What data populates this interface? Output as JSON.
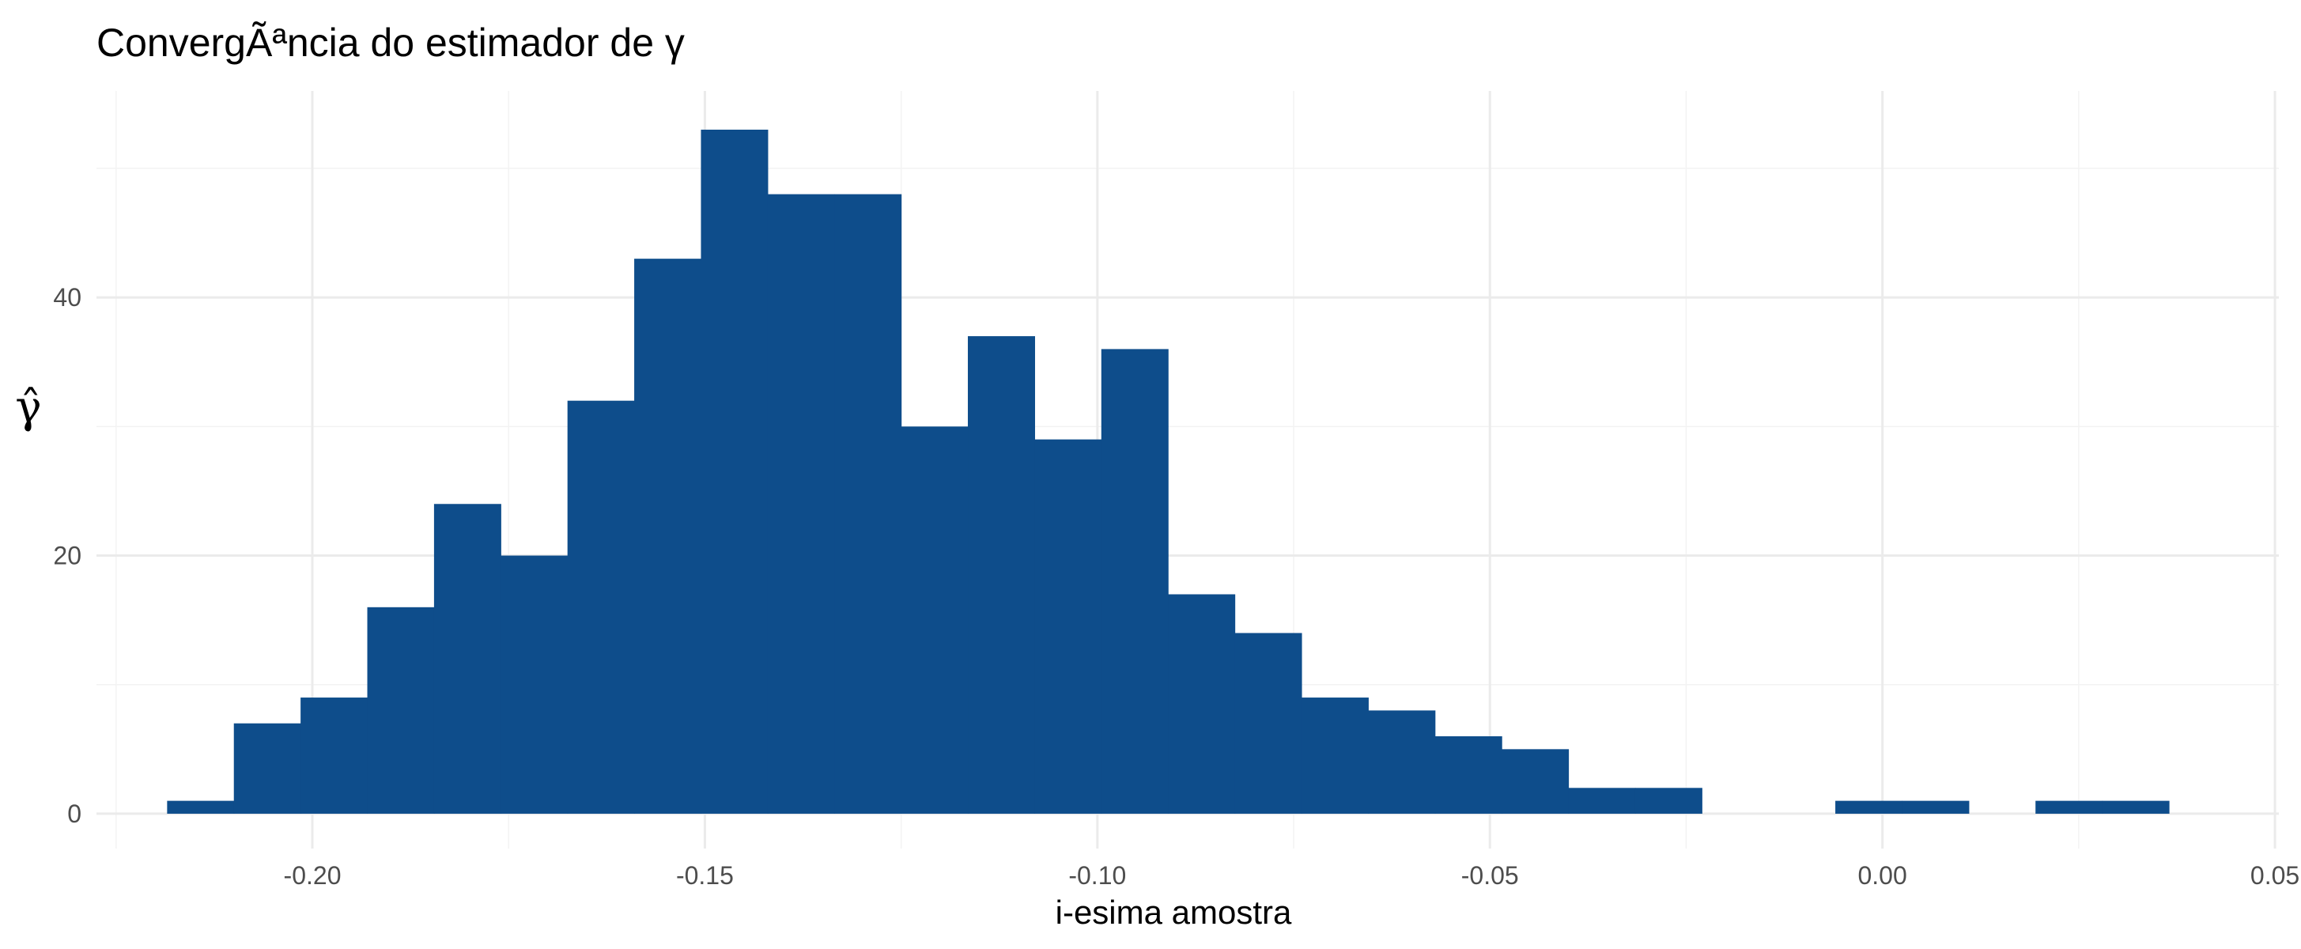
{
  "chart_data": {
    "type": "bar",
    "title": "ConvergÃªncia do estimador de γ",
    "xlabel": "i-esima amostra",
    "ylabel": "γ̂",
    "bin_width": 0.0085,
    "bins": [
      {
        "x0": -0.2185,
        "x1": -0.21,
        "count": 1
      },
      {
        "x0": -0.21,
        "x1": -0.2015,
        "count": 7
      },
      {
        "x0": -0.2015,
        "x1": -0.193,
        "count": 9
      },
      {
        "x0": -0.193,
        "x1": -0.1845,
        "count": 16
      },
      {
        "x0": -0.1845,
        "x1": -0.176,
        "count": 24
      },
      {
        "x0": -0.176,
        "x1": -0.1675,
        "count": 20
      },
      {
        "x0": -0.1675,
        "x1": -0.159,
        "count": 32
      },
      {
        "x0": -0.159,
        "x1": -0.1505,
        "count": 43
      },
      {
        "x0": -0.1505,
        "x1": -0.142,
        "count": 53
      },
      {
        "x0": -0.142,
        "x1": -0.1335,
        "count": 48
      },
      {
        "x0": -0.1335,
        "x1": -0.125,
        "count": 48
      },
      {
        "x0": -0.125,
        "x1": -0.1165,
        "count": 30
      },
      {
        "x0": -0.1165,
        "x1": -0.108,
        "count": 37
      },
      {
        "x0": -0.108,
        "x1": -0.0995,
        "count": 29
      },
      {
        "x0": -0.0995,
        "x1": -0.091,
        "count": 36
      },
      {
        "x0": -0.091,
        "x1": -0.0825,
        "count": 17
      },
      {
        "x0": -0.0825,
        "x1": -0.074,
        "count": 14
      },
      {
        "x0": -0.074,
        "x1": -0.0655,
        "count": 9
      },
      {
        "x0": -0.0655,
        "x1": -0.057,
        "count": 8
      },
      {
        "x0": -0.057,
        "x1": -0.0485,
        "count": 6
      },
      {
        "x0": -0.0485,
        "x1": -0.04,
        "count": 5
      },
      {
        "x0": -0.04,
        "x1": -0.0315,
        "count": 2
      },
      {
        "x0": -0.0315,
        "x1": -0.023,
        "count": 2
      },
      {
        "x0": -0.023,
        "x1": -0.0145,
        "count": 0
      },
      {
        "x0": -0.0145,
        "x1": -0.006,
        "count": 0
      },
      {
        "x0": -0.006,
        "x1": 0.0025,
        "count": 1
      },
      {
        "x0": 0.0025,
        "x1": 0.011,
        "count": 1
      },
      {
        "x0": 0.011,
        "x1": 0.0195,
        "count": 0
      },
      {
        "x0": 0.0195,
        "x1": 0.028,
        "count": 1
      },
      {
        "x0": 0.028,
        "x1": 0.0365,
        "count": 1
      }
    ],
    "xlim": [
      -0.2275,
      0.0505
    ],
    "ylim": [
      -2.7,
      56
    ],
    "x_ticks": [
      -0.2,
      -0.15,
      -0.1,
      -0.05,
      0.0,
      0.05
    ],
    "x_tick_labels": [
      "-0.20",
      "-0.15",
      "-0.10",
      "-0.05",
      "0.00",
      "0.05"
    ],
    "x_minor_ticks": [
      -0.225,
      -0.175,
      -0.125,
      -0.075,
      -0.025,
      0.025
    ],
    "y_ticks": [
      0,
      20,
      40
    ],
    "y_tick_labels": [
      "0",
      "20",
      "40"
    ],
    "y_minor_ticks": [
      10,
      30,
      50
    ],
    "grid": true,
    "legend": "none",
    "bar_color": "#0e4d8b",
    "grid_color": "#ebebeb"
  }
}
